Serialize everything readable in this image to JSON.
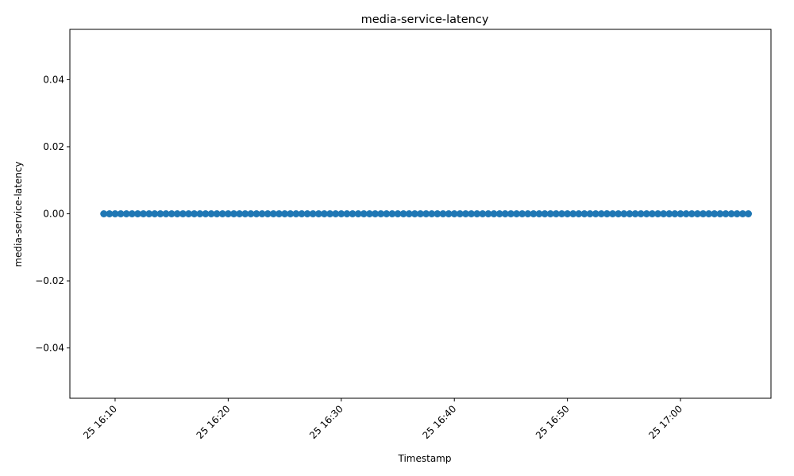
{
  "chart_data": {
    "type": "scatter",
    "title": "media-service-latency",
    "xlabel": "Timestamp",
    "ylabel": "media-service-latency",
    "x_start": "16:09:00",
    "x_end": "17:06:00",
    "point_count": 115,
    "y_value": 0,
    "ylim": [
      -0.055,
      0.055
    ],
    "yticks": [
      -0.04,
      -0.02,
      0.0,
      0.02,
      0.04
    ],
    "ytick_labels": [
      "−0.04",
      "−0.02",
      "0.00",
      "0.02",
      "0.04"
    ],
    "xticks": [
      "16:10",
      "16:20",
      "16:30",
      "16:40",
      "16:50",
      "17:00"
    ],
    "xtick_labels": [
      "25 16:10",
      "25 16:20",
      "25 16:30",
      "25 16:40",
      "25 16:50",
      "25 17:00"
    ],
    "x_axis_range": [
      "16:06:00",
      "17:08:00"
    ],
    "marker_color": "#1f77b4",
    "grid": false,
    "legend": "none"
  }
}
